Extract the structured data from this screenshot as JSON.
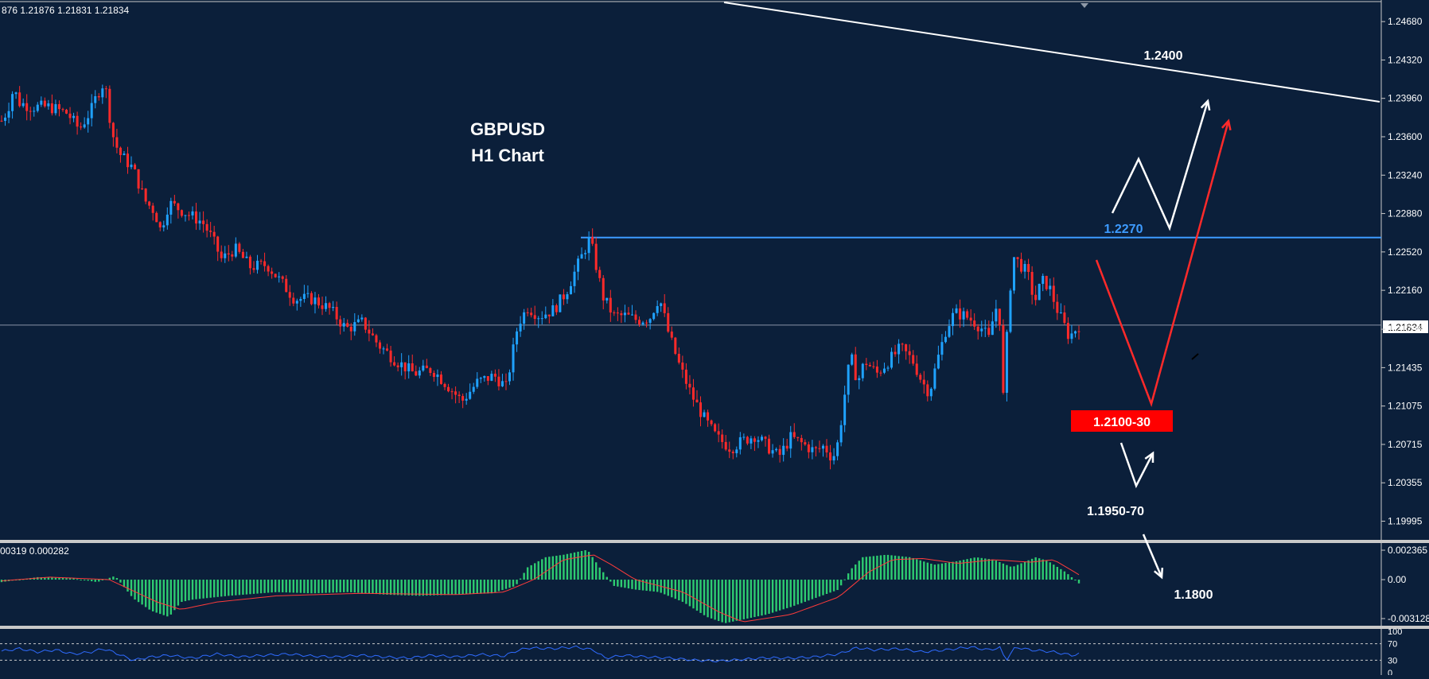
{
  "header": {
    "ohlc_text": "876 1.21876 1.21831 1.21834"
  },
  "chart_data": {
    "type": "candlestick",
    "title": "GBPUSD",
    "subtitle": "H1 Chart",
    "current_price_label": "1.21834",
    "current_price": 1.21834,
    "ylim": [
      1.1982,
      1.2486
    ],
    "y_ticks": [
      "1.24680",
      "1.24320",
      "1.23960",
      "1.23600",
      "1.23240",
      "1.22880",
      "1.22520",
      "1.22160",
      "1.21795",
      "1.21435",
      "1.21075",
      "1.20715",
      "1.20355",
      "1.19995"
    ],
    "y_tick_values": [
      1.2468,
      1.2432,
      1.2396,
      1.236,
      1.2324,
      1.2288,
      1.2252,
      1.2216,
      1.21795,
      1.21435,
      1.21075,
      1.20715,
      1.20355,
      1.19995
    ],
    "path_closes": [
      [
        0,
        1.2375
      ],
      [
        5,
        1.2385
      ],
      [
        10,
        1.2405
      ],
      [
        15,
        1.2392
      ],
      [
        25,
        1.2388
      ],
      [
        40,
        1.2388
      ],
      [
        55,
        1.2382
      ],
      [
        65,
        1.2367
      ],
      [
        75,
        1.2385
      ],
      [
        80,
        1.24
      ],
      [
        85,
        1.241
      ],
      [
        88,
        1.24
      ],
      [
        92,
        1.2365
      ],
      [
        98,
        1.2345
      ],
      [
        110,
        1.233
      ],
      [
        120,
        1.23
      ],
      [
        128,
        1.229
      ],
      [
        133,
        1.2272
      ],
      [
        140,
        1.2298
      ],
      [
        155,
        1.2288
      ],
      [
        168,
        1.228
      ],
      [
        176,
        1.2265
      ],
      [
        184,
        1.2245
      ],
      [
        195,
        1.2255
      ],
      [
        208,
        1.2238
      ],
      [
        222,
        1.224
      ],
      [
        235,
        1.2222
      ],
      [
        245,
        1.2208
      ],
      [
        260,
        1.2208
      ],
      [
        275,
        1.2198
      ],
      [
        288,
        1.218
      ],
      [
        302,
        1.2186
      ],
      [
        315,
        1.2165
      ],
      [
        330,
        1.215
      ],
      [
        345,
        1.2138
      ],
      [
        360,
        1.2142
      ],
      [
        372,
        1.2128
      ],
      [
        385,
        1.2112
      ],
      [
        398,
        1.213
      ],
      [
        412,
        1.2136
      ],
      [
        422,
        1.2125
      ],
      [
        432,
        1.2185
      ],
      [
        440,
        1.22
      ],
      [
        450,
        1.2192
      ],
      [
        462,
        1.2198
      ],
      [
        472,
        1.2214
      ],
      [
        480,
        1.2235
      ],
      [
        488,
        1.2255
      ],
      [
        492,
        1.2265
      ],
      [
        497,
        1.224
      ],
      [
        503,
        1.221
      ],
      [
        512,
        1.2192
      ],
      [
        522,
        1.2192
      ],
      [
        532,
        1.2188
      ],
      [
        542,
        1.219
      ],
      [
        550,
        1.221
      ],
      [
        558,
        1.2175
      ],
      [
        567,
        1.2145
      ],
      [
        577,
        1.2118
      ],
      [
        588,
        1.2095
      ],
      [
        598,
        1.2078
      ],
      [
        610,
        1.2068
      ],
      [
        620,
        1.2075
      ],
      [
        630,
        1.208
      ],
      [
        640,
        1.207
      ],
      [
        650,
        1.206
      ],
      [
        660,
        1.2078
      ],
      [
        670,
        1.2072
      ],
      [
        680,
        1.2065
      ],
      [
        688,
        1.207
      ],
      [
        695,
        1.2058
      ],
      [
        700,
        1.2075
      ],
      [
        704,
        1.211
      ],
      [
        710,
        1.2155
      ],
      [
        716,
        1.213
      ],
      [
        722,
        1.215
      ],
      [
        732,
        1.2138
      ],
      [
        742,
        1.215
      ],
      [
        752,
        1.2162
      ],
      [
        762,
        1.215
      ],
      [
        770,
        1.213
      ],
      [
        776,
        1.212
      ],
      [
        782,
        1.2148
      ],
      [
        790,
        1.218
      ],
      [
        797,
        1.2195
      ],
      [
        806,
        1.2192
      ],
      [
        814,
        1.2186
      ],
      [
        820,
        1.218
      ],
      [
        826,
        1.217
      ],
      [
        830,
        1.2195
      ],
      [
        834,
        1.2205
      ],
      [
        838,
        1.211
      ],
      [
        842,
        1.22
      ],
      [
        846,
        1.2248
      ],
      [
        852,
        1.224
      ],
      [
        858,
        1.2232
      ],
      [
        864,
        1.2205
      ],
      [
        870,
        1.2225
      ],
      [
        876,
        1.222
      ],
      [
        882,
        1.22
      ],
      [
        888,
        1.2185
      ],
      [
        893,
        1.2172
      ],
      [
        897,
        1.2178
      ],
      [
        901,
        1.2183
      ]
    ],
    "levels": [
      {
        "label": "1.2400",
        "value": 1.24,
        "style": "white"
      },
      {
        "label": "1.2270",
        "value": 1.227,
        "style": "blue-resistance"
      },
      {
        "label": "1.2100-30",
        "value": 1.21,
        "style": "red-box"
      },
      {
        "label": "1.1950-70",
        "value": 1.195,
        "style": "white"
      },
      {
        "label": "1.1800",
        "value": 1.18,
        "style": "white"
      }
    ],
    "macd": {
      "header_text": "00319 0.000282",
      "ticks": [
        "0.002365",
        "0.00",
        "-0.003128"
      ],
      "tick_values": [
        0.002365,
        0.0,
        -0.003128
      ],
      "histogram_path": [
        [
          0,
          -0.0002
        ],
        [
          30,
          0.0002
        ],
        [
          60,
          0.0001
        ],
        [
          80,
          -0.0002
        ],
        [
          95,
          0.0003
        ],
        [
          110,
          -0.0015
        ],
        [
          125,
          -0.0025
        ],
        [
          140,
          -0.003
        ],
        [
          150,
          -0.0018
        ],
        [
          160,
          -0.0016
        ],
        [
          190,
          -0.0013
        ],
        [
          230,
          -0.001
        ],
        [
          260,
          -0.0011
        ],
        [
          290,
          -0.001
        ],
        [
          320,
          -0.0012
        ],
        [
          350,
          -0.0013
        ],
        [
          380,
          -0.0012
        ],
        [
          410,
          -0.0011
        ],
        [
          430,
          -0.0005
        ],
        [
          440,
          0.001
        ],
        [
          455,
          0.0018
        ],
        [
          470,
          0.002
        ],
        [
          490,
          0.0024
        ],
        [
          500,
          0.001
        ],
        [
          512,
          -0.0005
        ],
        [
          530,
          -0.0008
        ],
        [
          550,
          -0.001
        ],
        [
          570,
          -0.0018
        ],
        [
          590,
          -0.003
        ],
        [
          605,
          -0.0035
        ],
        [
          620,
          -0.0032
        ],
        [
          640,
          -0.0028
        ],
        [
          660,
          -0.0022
        ],
        [
          680,
          -0.0015
        ],
        [
          700,
          -0.0008
        ],
        [
          710,
          0.0008
        ],
        [
          720,
          0.0018
        ],
        [
          740,
          0.002
        ],
        [
          760,
          0.0018
        ],
        [
          780,
          0.0012
        ],
        [
          800,
          0.0015
        ],
        [
          815,
          0.0018
        ],
        [
          830,
          0.0016
        ],
        [
          845,
          0.001
        ],
        [
          855,
          0.0014
        ],
        [
          865,
          0.0018
        ],
        [
          875,
          0.0015
        ],
        [
          890,
          0.0006
        ],
        [
          901,
          -0.0003
        ]
      ],
      "signal_path": [
        [
          0,
          -0.0001
        ],
        [
          40,
          0.0002
        ],
        [
          90,
          0.0
        ],
        [
          130,
          -0.0018
        ],
        [
          150,
          -0.0024
        ],
        [
          180,
          -0.0018
        ],
        [
          230,
          -0.0013
        ],
        [
          300,
          -0.0011
        ],
        [
          380,
          -0.0012
        ],
        [
          420,
          -0.001
        ],
        [
          445,
          0.0
        ],
        [
          470,
          0.0016
        ],
        [
          495,
          0.002
        ],
        [
          510,
          0.0012
        ],
        [
          530,
          0.0
        ],
        [
          570,
          -0.001
        ],
        [
          600,
          -0.0026
        ],
        [
          620,
          -0.0034
        ],
        [
          660,
          -0.0028
        ],
        [
          700,
          -0.0014
        ],
        [
          725,
          0.0006
        ],
        [
          745,
          0.0016
        ],
        [
          770,
          0.0017
        ],
        [
          800,
          0.0013
        ],
        [
          830,
          0.0016
        ],
        [
          860,
          0.0014
        ],
        [
          880,
          0.0016
        ],
        [
          901,
          0.0004
        ]
      ]
    },
    "rsi": {
      "ticks": [
        "100",
        "70",
        "30",
        "0"
      ],
      "tick_values": [
        100,
        70,
        30,
        0
      ],
      "path": [
        [
          0,
          52
        ],
        [
          15,
          58
        ],
        [
          30,
          50
        ],
        [
          45,
          55
        ],
        [
          60,
          45
        ],
        [
          75,
          50
        ],
        [
          85,
          58
        ],
        [
          95,
          48
        ],
        [
          110,
          30
        ],
        [
          125,
          38
        ],
        [
          140,
          42
        ],
        [
          160,
          35
        ],
        [
          180,
          45
        ],
        [
          200,
          38
        ],
        [
          220,
          42
        ],
        [
          240,
          45
        ],
        [
          260,
          40
        ],
        [
          280,
          38
        ],
        [
          300,
          42
        ],
        [
          320,
          38
        ],
        [
          340,
          35
        ],
        [
          360,
          42
        ],
        [
          380,
          38
        ],
        [
          400,
          44
        ],
        [
          420,
          40
        ],
        [
          430,
          52
        ],
        [
          440,
          60
        ],
        [
          460,
          58
        ],
        [
          480,
          62
        ],
        [
          495,
          55
        ],
        [
          505,
          35
        ],
        [
          520,
          42
        ],
        [
          540,
          38
        ],
        [
          560,
          35
        ],
        [
          580,
          30
        ],
        [
          600,
          28
        ],
        [
          620,
          32
        ],
        [
          640,
          36
        ],
        [
          660,
          35
        ],
        [
          680,
          38
        ],
        [
          700,
          45
        ],
        [
          715,
          60
        ],
        [
          730,
          55
        ],
        [
          750,
          58
        ],
        [
          770,
          50
        ],
        [
          790,
          55
        ],
        [
          810,
          62
        ],
        [
          825,
          55
        ],
        [
          835,
          60
        ],
        [
          840,
          30
        ],
        [
          848,
          62
        ],
        [
          860,
          55
        ],
        [
          880,
          50
        ],
        [
          895,
          42
        ],
        [
          901,
          45
        ]
      ]
    }
  }
}
